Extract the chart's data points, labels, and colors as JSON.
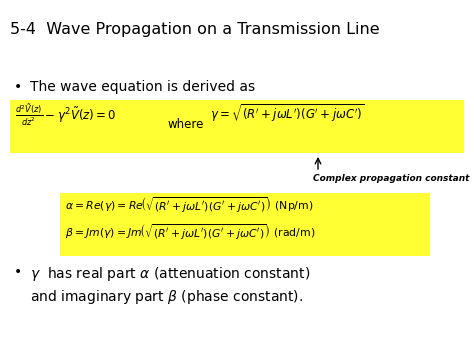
{
  "title": "5-4  Wave Propagation on a Transmission Line",
  "bg_color": "#ffffff",
  "yellow_bg": "#ffff33",
  "title_fontsize": 11.5,
  "title_color": "#000000",
  "bullet1_text": "The wave equation is derived as",
  "eq1_left": "$\\frac{d^2\\tilde{V}(z)}{dz^2} - \\gamma^2\\tilde{V}(z) = 0$",
  "eq1_where": "where",
  "eq1_right": "$\\gamma = \\sqrt{(R' + j\\omega L')(G' + j\\omega C')}$",
  "label_arrow": "Complex propagation constant",
  "eq2a": "$\\alpha = Re(\\gamma) = Re\\!\\left(\\sqrt{(R'+j\\omega L')(G'+j\\omega C')}\\right)$ (Np/m)",
  "eq2b": "$\\beta = Jm(\\gamma) = Jm\\!\\left(\\sqrt{(R'+j\\omega L')(G'+j\\omega C')}\\right)$ (rad/m)",
  "bullet2_line1": "$\\gamma$  has real part $\\alpha$ (attenuation constant)",
  "bullet2_line2": "and imaginary part $\\beta$ (phase constant).",
  "figw": 4.74,
  "figh": 3.55,
  "dpi": 100
}
